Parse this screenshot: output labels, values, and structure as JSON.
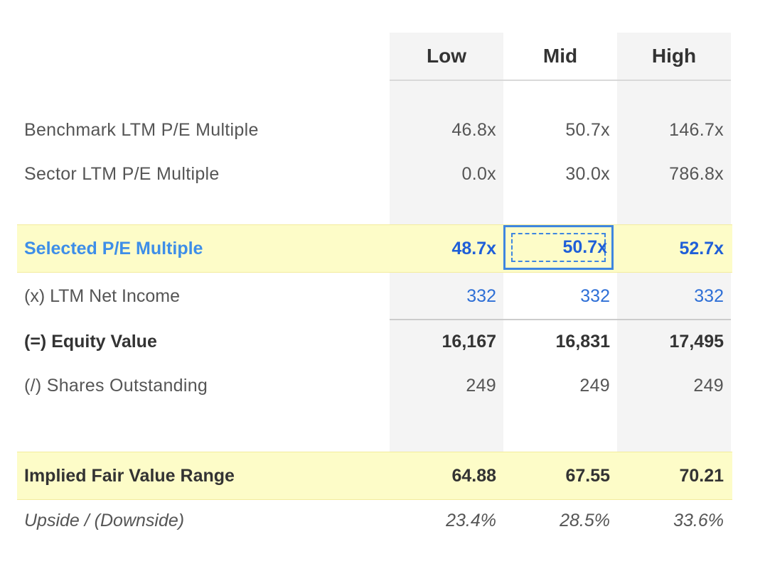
{
  "columns": [
    "Low",
    "Mid",
    "High"
  ],
  "rows": {
    "benchmark": {
      "label": "Benchmark LTM P/E Multiple",
      "values": [
        "46.8x",
        "50.7x",
        "146.7x"
      ]
    },
    "sector": {
      "label": "Sector LTM P/E Multiple",
      "values": [
        "0.0x",
        "30.0x",
        "786.8x"
      ]
    },
    "selected": {
      "label": "Selected P/E Multiple",
      "values": [
        "48.7x",
        "50.7x",
        "52.7x"
      ]
    },
    "net_income": {
      "label": "(x) LTM Net Income",
      "values": [
        "332",
        "332",
        "332"
      ]
    },
    "equity": {
      "label": "(=) Equity Value",
      "values": [
        "16,167",
        "16,831",
        "17,495"
      ]
    },
    "shares": {
      "label": "(/) Shares Outstanding",
      "values": [
        "249",
        "249",
        "249"
      ]
    },
    "fair_value": {
      "label": "Implied Fair Value Range",
      "values": [
        "64.88",
        "67.55",
        "70.21"
      ]
    },
    "upside": {
      "label": "Upside / (Downside)",
      "values": [
        "23.4%",
        "28.5%",
        "33.6%"
      ]
    }
  },
  "colors": {
    "highlight_background": "#fdfcc8",
    "selected_label": "#3e8ee8",
    "selected_value": "#1f5fd8",
    "input_border": "#3e86e0",
    "link_value": "#2e6fd6",
    "column_shade": "#f4f4f4"
  }
}
